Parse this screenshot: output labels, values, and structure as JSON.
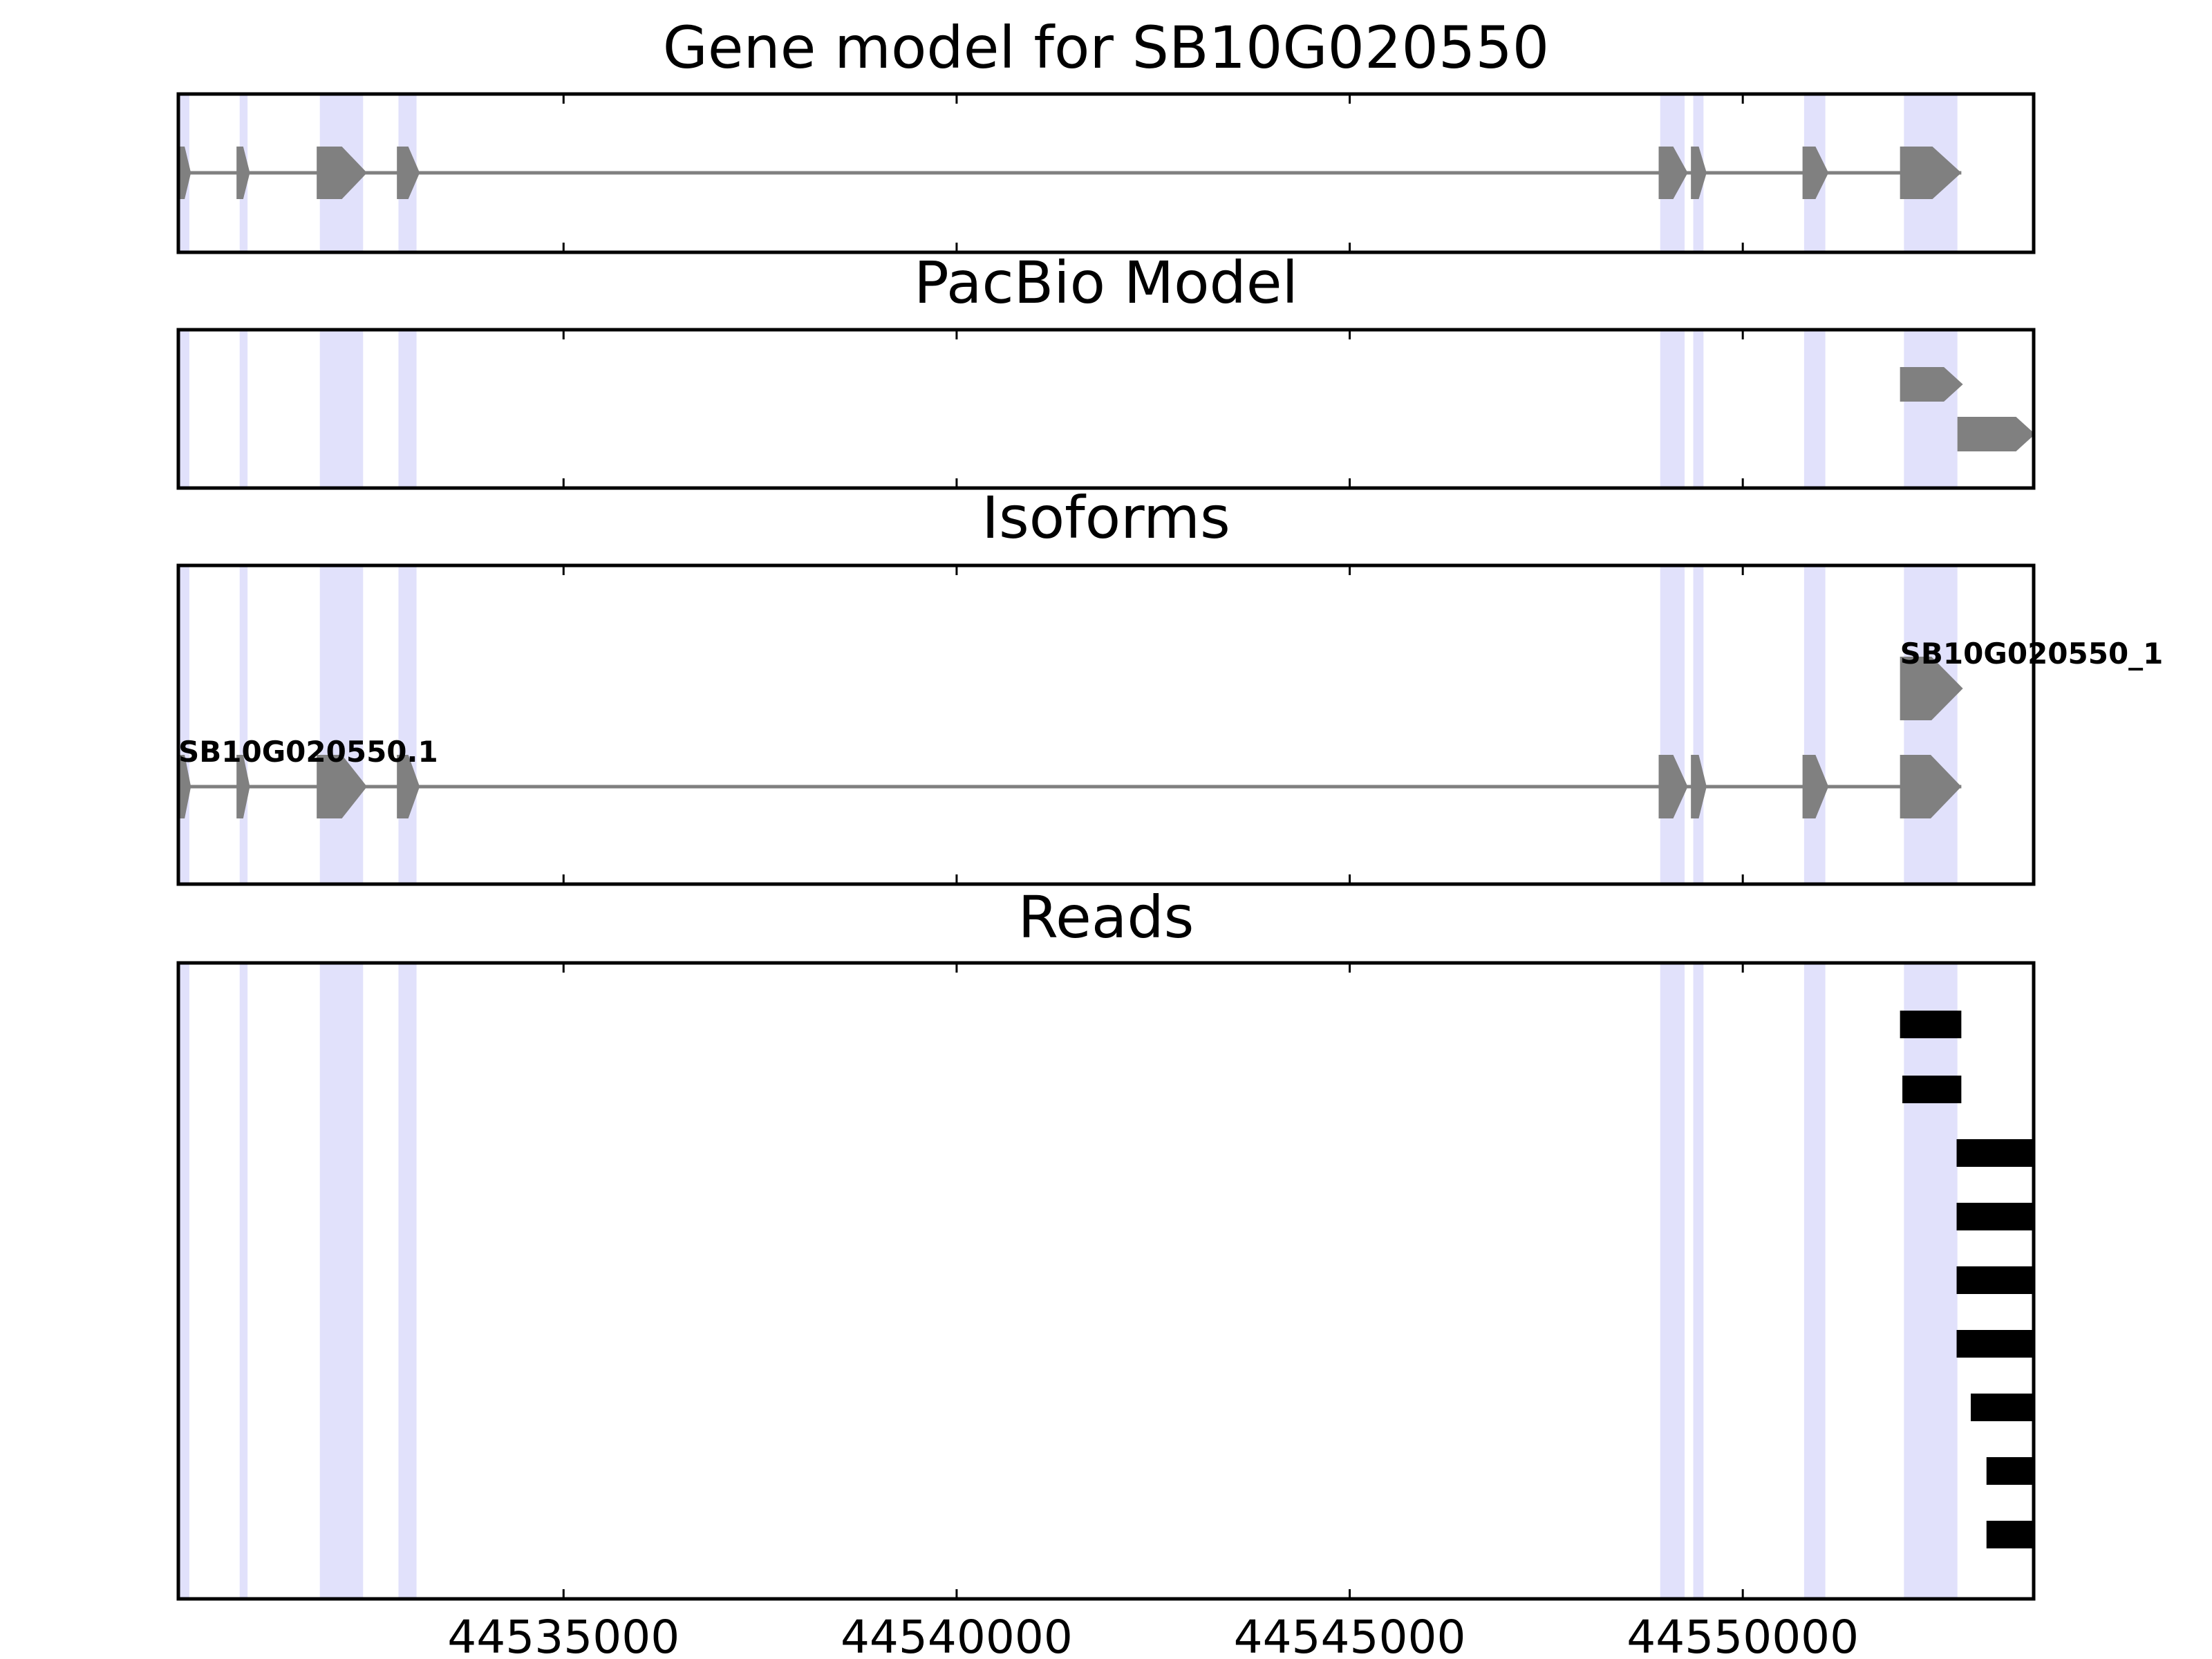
{
  "chart_data": {
    "type": "gene-track",
    "xlim": [
      44530100,
      44553700
    ],
    "x_ticks": [
      44535000,
      44540000,
      44545000,
      44550000
    ],
    "x_tick_labels": [
      "44535000",
      "44540000",
      "44545000",
      "44550000"
    ],
    "highlight_regions": [
      [
        44530100,
        44530240
      ],
      [
        44530880,
        44530980
      ],
      [
        44531900,
        44532450
      ],
      [
        44532900,
        44533130
      ],
      [
        44548950,
        44549260
      ],
      [
        44549370,
        44549500
      ],
      [
        44550780,
        44551050
      ],
      [
        44552050,
        44552730
      ]
    ],
    "panels": [
      {
        "title": "Gene model for SB10G020550",
        "tracks": [
          {
            "exons": [
              [
                44530100,
                44530260
              ],
              [
                44530840,
                44531010
              ],
              [
                44531860,
                44532500
              ],
              [
                44532880,
                44533170
              ],
              [
                44548930,
                44549300
              ],
              [
                44549340,
                44549540
              ],
              [
                44550760,
                44551090
              ],
              [
                44552000,
                44552780
              ]
            ]
          }
        ]
      },
      {
        "title": "PacBio Model",
        "tracks": [
          {
            "exons": [
              [
                44552000,
                44552800
              ]
            ]
          },
          {
            "exons": [
              [
                44552730,
                44553730
              ]
            ]
          }
        ]
      },
      {
        "title": "Isoforms",
        "tracks": [
          {
            "label": "SB10G020550_1",
            "exons": [
              [
                44552000,
                44552800
              ]
            ]
          },
          {
            "label": "SB10G020550.1",
            "exons": [
              [
                44530100,
                44530260
              ],
              [
                44530840,
                44531010
              ],
              [
                44531860,
                44532500
              ],
              [
                44532880,
                44533170
              ],
              [
                44548930,
                44549300
              ],
              [
                44549340,
                44549540
              ],
              [
                44550760,
                44551090
              ],
              [
                44552000,
                44552780
              ]
            ]
          }
        ]
      },
      {
        "title": "Reads",
        "reads": [
          [
            44552000,
            44552780
          ],
          [
            44552030,
            44552780
          ],
          [
            44552720,
            44553700
          ],
          [
            44552720,
            44553700
          ],
          [
            44552720,
            44553700
          ],
          [
            44552720,
            44553700
          ],
          [
            44552900,
            44553700
          ],
          [
            44553100,
            44553700
          ],
          [
            44553100,
            44553700
          ]
        ]
      }
    ]
  }
}
